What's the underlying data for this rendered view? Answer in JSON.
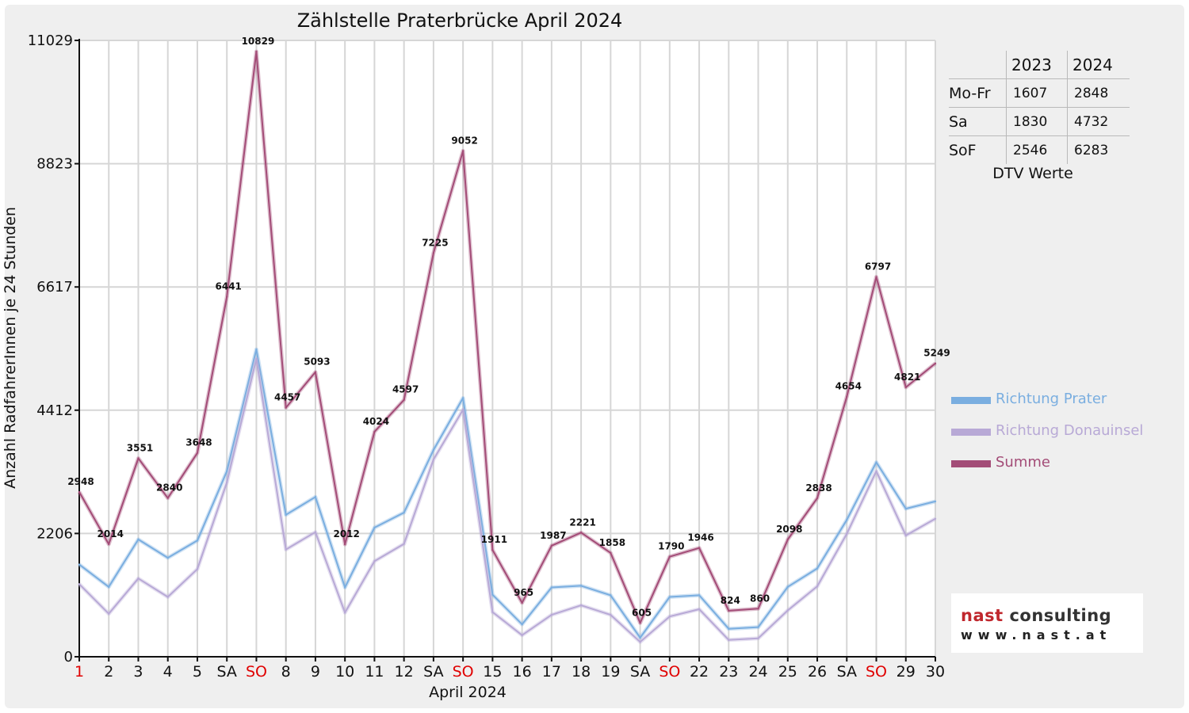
{
  "chart_data": {
    "type": "line",
    "title": "Zählstelle Praterbrücke April 2024",
    "xlabel": "April 2024",
    "ylabel": "Anzahl RadfahrerInnen je 24 Stunden",
    "ylim": [
      0,
      11029
    ],
    "yticks": [
      0,
      2206,
      4412,
      6617,
      8823,
      11029
    ],
    "grid": true,
    "legend_position": "right",
    "categories": [
      "1",
      "2",
      "3",
      "4",
      "5",
      "SA",
      "SO",
      "8",
      "9",
      "10",
      "11",
      "12",
      "SA",
      "SO",
      "15",
      "16",
      "17",
      "18",
      "19",
      "SA",
      "SO",
      "22",
      "23",
      "24",
      "25",
      "26",
      "SA",
      "SO",
      "29",
      "30"
    ],
    "red_ticks": [
      0,
      6,
      13,
      20,
      27
    ],
    "series": [
      {
        "name": "Richtung Prater",
        "color": "#7aaee0",
        "values": [
          1650,
          1250,
          2100,
          1770,
          2080,
          3320,
          5500,
          2540,
          2860,
          1240,
          2310,
          2580,
          3700,
          4630,
          1110,
          580,
          1240,
          1270,
          1100,
          340,
          1070,
          1100,
          500,
          530,
          1250,
          1580,
          2450,
          3480,
          2650,
          2780
        ]
      },
      {
        "name": "Richtung Donauinsel",
        "color": "#b8a9d6",
        "values": [
          1300,
          770,
          1400,
          1070,
          1570,
          3120,
          5330,
          1920,
          2230,
          790,
          1710,
          2020,
          3530,
          4420,
          800,
          385,
          750,
          920,
          750,
          265,
          720,
          850,
          300,
          330,
          830,
          1260,
          2200,
          3320,
          2170,
          2470
        ]
      },
      {
        "name": "Summe",
        "color": "#a34c77",
        "values": [
          2948,
          2014,
          3551,
          2840,
          3648,
          6441,
          10829,
          4457,
          5093,
          2012,
          4024,
          4597,
          7225,
          9052,
          1911,
          965,
          1987,
          2221,
          1858,
          605,
          1790,
          1946,
          824,
          860,
          2098,
          2838,
          4654,
          6797,
          4821,
          5249
        ]
      }
    ]
  },
  "dtv_table": {
    "headers": [
      "",
      "2023",
      "2024"
    ],
    "rows": [
      {
        "label": "Mo-Fr",
        "v2023": "1607",
        "v2024": "2848"
      },
      {
        "label": "Sa",
        "v2023": "1830",
        "v2024": "4732"
      },
      {
        "label": "SoF",
        "v2023": "2546",
        "v2024": "6283"
      }
    ],
    "caption": "DTV Werte"
  },
  "logo": {
    "name_part1": "nast",
    "name_part2": " consulting",
    "url": "www.nast.at"
  }
}
